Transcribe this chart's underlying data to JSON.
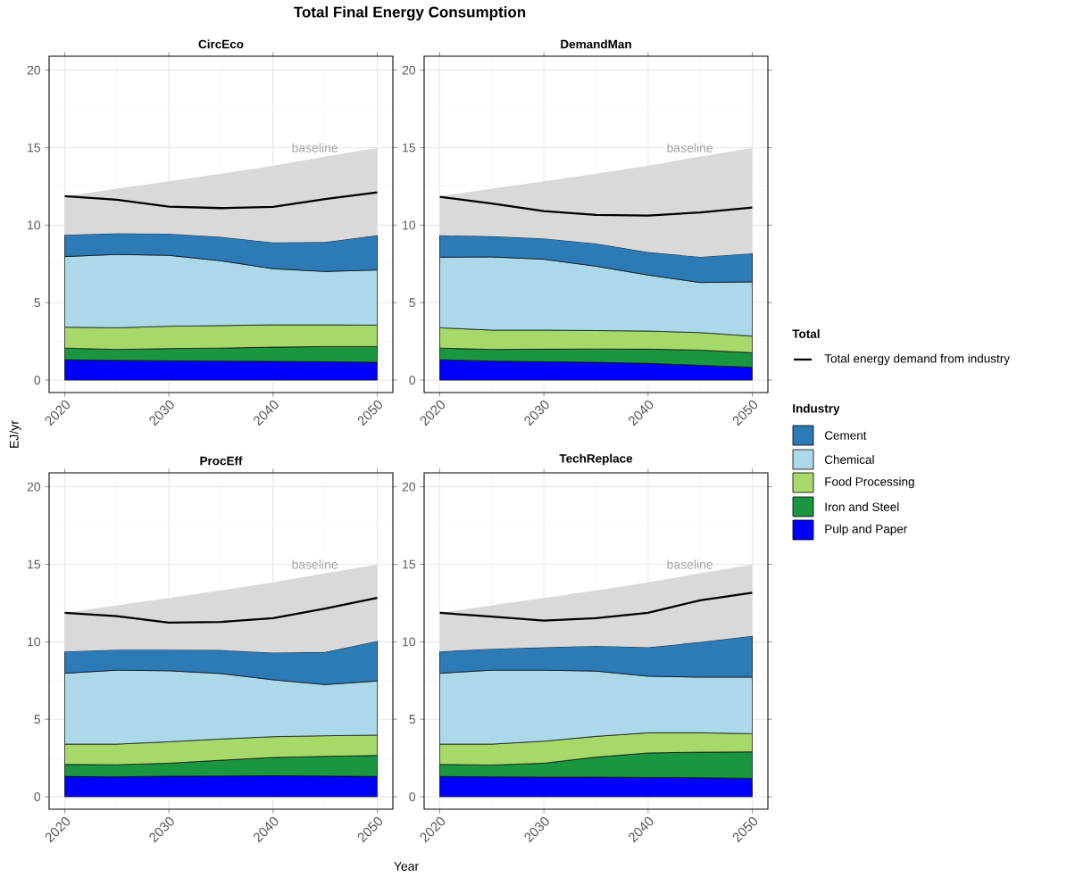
{
  "chart_data": [
    {
      "type": "area",
      "stacked": true,
      "title": "CircEco",
      "x": [
        2020,
        2025,
        2030,
        2035,
        2040,
        2045,
        2050
      ],
      "xlim": [
        2018.5,
        2051.5
      ],
      "ylim": [
        -0.8,
        20.9
      ],
      "xticks": [
        2020,
        2030,
        2040,
        2050
      ],
      "yticks": [
        0,
        5,
        10,
        15,
        20
      ],
      "grid": true,
      "legend": "right",
      "legend_title": "Industry",
      "annotations": [
        "baseline"
      ],
      "series": [
        {
          "name": "Pulp and Paper",
          "color": "#0000ff",
          "values": [
            1.31,
            1.27,
            1.25,
            1.23,
            1.21,
            1.19,
            1.15
          ]
        },
        {
          "name": "Iron and Steel",
          "color": "#1a9641",
          "values": [
            0.76,
            0.71,
            0.79,
            0.84,
            0.92,
            0.98,
            1.02
          ]
        },
        {
          "name": "Food Processing",
          "color": "#a6d96a",
          "values": [
            1.35,
            1.4,
            1.44,
            1.45,
            1.44,
            1.4,
            1.38
          ]
        },
        {
          "name": "Chemical",
          "color": "#abd9e9",
          "values": [
            4.55,
            4.73,
            4.57,
            4.18,
            3.62,
            3.44,
            3.56
          ]
        },
        {
          "name": "Cement",
          "color": "#2c7bb6",
          "values": [
            1.41,
            1.36,
            1.4,
            1.54,
            1.69,
            1.9,
            2.23
          ]
        },
        {
          "color": "#d9d9d9",
          "values": [
            2.49,
            2.88,
            3.38,
            4.07,
            4.95,
            5.52,
            5.65
          ]
        },
        {
          "type": "line",
          "name": "Total energy demand from industry",
          "color": "#000000",
          "values": [
            11.87,
            11.64,
            11.2,
            11.1,
            11.18,
            11.68,
            12.12
          ]
        }
      ]
    },
    {
      "type": "area",
      "stacked": true,
      "title": "DemandMan",
      "x": [
        2020,
        2025,
        2030,
        2035,
        2040,
        2045,
        2050
      ],
      "xlim": [
        2018.5,
        2051.5
      ],
      "ylim": [
        -0.8,
        20.9
      ],
      "xticks": [
        2020,
        2030,
        2040,
        2050
      ],
      "yticks": [
        0,
        5,
        10,
        15,
        20
      ],
      "grid": true,
      "annotations": [
        "baseline"
      ],
      "series": [
        {
          "color": "#0000ff",
          "values": [
            1.31,
            1.23,
            1.19,
            1.15,
            1.08,
            0.96,
            0.83
          ]
        },
        {
          "color": "#1a9641",
          "values": [
            0.76,
            0.75,
            0.81,
            0.86,
            0.92,
            0.98,
            0.94
          ]
        },
        {
          "color": "#a6d96a",
          "values": [
            1.31,
            1.25,
            1.23,
            1.19,
            1.17,
            1.13,
            1.07
          ]
        },
        {
          "color": "#abd9e9",
          "values": [
            4.55,
            4.72,
            4.57,
            4.15,
            3.61,
            3.23,
            3.5
          ]
        },
        {
          "color": "#2c7bb6",
          "values": [
            1.41,
            1.33,
            1.35,
            1.46,
            1.48,
            1.65,
            1.84
          ]
        },
        {
          "color": "#d9d9d9",
          "values": [
            2.53,
            3.07,
            3.68,
            4.51,
            5.57,
            6.48,
            6.81
          ]
        },
        {
          "type": "line",
          "color": "#000000",
          "values": [
            11.83,
            11.39,
            10.91,
            10.66,
            10.62,
            10.82,
            11.14
          ]
        }
      ]
    },
    {
      "type": "area",
      "stacked": true,
      "title": "ProcEff",
      "x": [
        2020,
        2025,
        2030,
        2035,
        2040,
        2045,
        2050
      ],
      "xlim": [
        2018.5,
        2051.5
      ],
      "ylim": [
        -0.8,
        20.9
      ],
      "xticks": [
        2020,
        2030,
        2040,
        2050
      ],
      "yticks": [
        0,
        5,
        10,
        15,
        20
      ],
      "grid": true,
      "annotations": [
        "baseline"
      ],
      "series": [
        {
          "color": "#0000ff",
          "values": [
            1.31,
            1.29,
            1.33,
            1.34,
            1.36,
            1.34,
            1.31
          ]
        },
        {
          "color": "#1a9641",
          "values": [
            0.78,
            0.78,
            0.84,
            1.02,
            1.18,
            1.27,
            1.36
          ]
        },
        {
          "color": "#a6d96a",
          "values": [
            1.31,
            1.33,
            1.38,
            1.37,
            1.34,
            1.33,
            1.31
          ]
        },
        {
          "color": "#abd9e9",
          "values": [
            4.57,
            4.77,
            4.58,
            4.22,
            3.67,
            3.3,
            3.49
          ]
        },
        {
          "color": "#2c7bb6",
          "values": [
            1.41,
            1.32,
            1.36,
            1.52,
            1.75,
            2.1,
            2.58
          ]
        },
        {
          "color": "#d9d9d9",
          "values": [
            2.49,
            2.86,
            3.34,
            3.84,
            4.53,
            5.09,
            4.94
          ]
        },
        {
          "type": "line",
          "color": "#000000",
          "values": [
            11.87,
            11.66,
            11.24,
            11.28,
            11.53,
            12.14,
            12.83
          ]
        }
      ]
    },
    {
      "type": "area",
      "stacked": true,
      "title": "TechReplace",
      "x": [
        2020,
        2025,
        2030,
        2035,
        2040,
        2045,
        2050
      ],
      "xlim": [
        2018.5,
        2051.5
      ],
      "ylim": [
        -0.8,
        20.9
      ],
      "xticks": [
        2020,
        2030,
        2040,
        2050
      ],
      "yticks": [
        0,
        5,
        10,
        15,
        20
      ],
      "grid": true,
      "annotations": [
        "baseline"
      ],
      "series": [
        {
          "color": "#0000ff",
          "values": [
            1.31,
            1.29,
            1.27,
            1.27,
            1.25,
            1.23,
            1.19
          ]
        },
        {
          "color": "#1a9641",
          "values": [
            0.78,
            0.76,
            0.9,
            1.29,
            1.58,
            1.65,
            1.71
          ]
        },
        {
          "color": "#a6d96a",
          "values": [
            1.31,
            1.35,
            1.42,
            1.34,
            1.3,
            1.25,
            1.17
          ]
        },
        {
          "color": "#abd9e9",
          "values": [
            4.57,
            4.77,
            4.58,
            4.21,
            3.65,
            3.59,
            3.65
          ]
        },
        {
          "color": "#2c7bb6",
          "values": [
            1.41,
            1.38,
            1.47,
            1.63,
            1.86,
            2.27,
            2.66
          ]
        },
        {
          "color": "#d9d9d9",
          "values": [
            2.49,
            2.8,
            3.19,
            3.57,
            4.19,
            4.44,
            4.61
          ]
        },
        {
          "type": "line",
          "color": "#000000",
          "values": [
            11.87,
            11.62,
            11.36,
            11.53,
            11.87,
            12.68,
            13.16
          ]
        }
      ]
    },
    {
      "type": "other",
      "title": "Total Final Energy Consumption",
      "xlabel": "Year",
      "ylabel": "EJ/yr",
      "legend_title": "Total"
    }
  ]
}
